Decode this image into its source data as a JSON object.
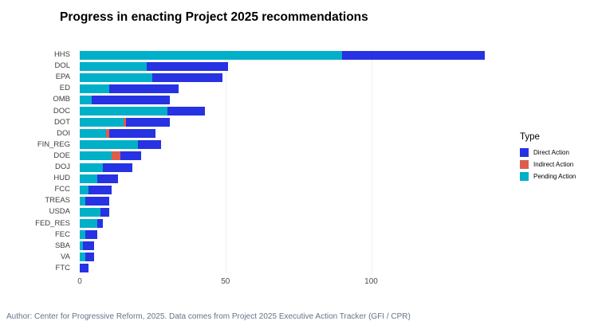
{
  "title": "Progress in enacting Project 2025 recommendations",
  "caption": "Author: Center for Progressive Reform, 2025. Data comes from Project 2025 Executive Action Tracker (GFI / CPR)",
  "legend": {
    "title": "Type",
    "items": [
      {
        "label": "Direct Action",
        "color": "#2732e3"
      },
      {
        "label": "Indirect Action",
        "color": "#db5e4d"
      },
      {
        "label": "Pending Action",
        "color": "#00afc8"
      }
    ]
  },
  "chart_data": {
    "type": "bar",
    "orientation": "horizontal",
    "stacked": true,
    "title": "Progress in enacting Project 2025 recommendations",
    "xlabel": "",
    "ylabel": "",
    "xlim": [
      0,
      145
    ],
    "x_ticks": [
      0,
      50,
      100
    ],
    "grid": "faint-vertical",
    "legend_position": "right",
    "categories": [
      "HHS",
      "DOL",
      "EPA",
      "ED",
      "OMB",
      "DOC",
      "DOT",
      "DOI",
      "FIN_REG",
      "DOE",
      "DOJ",
      "HUD",
      "FCC",
      "TREAS",
      "USDA",
      "FED_RES",
      "FEC",
      "SBA",
      "VA",
      "FTC"
    ],
    "series": [
      {
        "name": "Pending Action",
        "color": "#00afc8",
        "values": [
          90,
          23,
          25,
          10,
          4,
          30,
          15,
          9,
          20,
          11,
          8,
          6,
          3,
          2,
          7,
          6,
          2,
          1,
          2,
          0
        ]
      },
      {
        "name": "Indirect Action",
        "color": "#db5e4d",
        "values": [
          0,
          0,
          0,
          0,
          0,
          0,
          1,
          1,
          0,
          3,
          0,
          0,
          0,
          0,
          0,
          0,
          0,
          0,
          0,
          0
        ]
      },
      {
        "name": "Direct Action",
        "color": "#2732e3",
        "values": [
          49,
          28,
          24,
          24,
          27,
          13,
          15,
          16,
          8,
          7,
          10,
          7,
          8,
          8,
          3,
          2,
          4,
          4,
          3,
          3
        ]
      }
    ],
    "totals": [
      139,
      51,
      49,
      34,
      31,
      43,
      31,
      26,
      28,
      21,
      18,
      13,
      11,
      10,
      10,
      8,
      6,
      5,
      5,
      3
    ]
  }
}
